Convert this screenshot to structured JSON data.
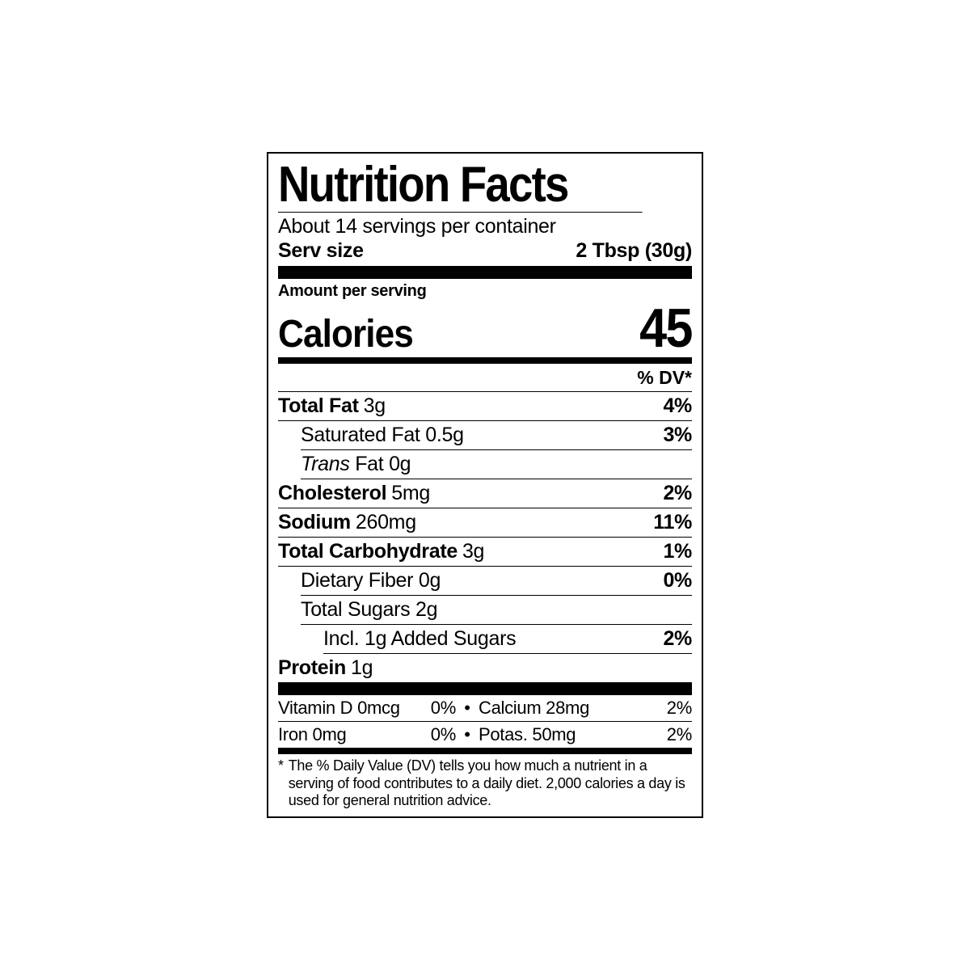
{
  "colors": {
    "text": "#000000",
    "background": "#ffffff",
    "border": "#000000"
  },
  "typography": {
    "title_fontsize": 62,
    "calories_value_fontsize": 68,
    "row_fontsize": 25,
    "vitamin_fontsize": 22,
    "footnote_fontsize": 18
  },
  "title": "Nutrition Facts",
  "servings_per_container": "About 14 servings per container",
  "serving_size_label": "Serv size",
  "serving_size_value": "2 Tbsp (30g)",
  "amount_per_serving": "Amount per serving",
  "calories_label": "Calories",
  "calories_value": "45",
  "dv_header": "% DV*",
  "nutrients": {
    "total_fat": {
      "label": "Total Fat",
      "amount": "3g",
      "dv": "4%"
    },
    "saturated_fat": {
      "label": "Saturated Fat 0.5g",
      "dv": "3%"
    },
    "trans_fat": {
      "prefix": "Trans",
      "suffix": " Fat 0g"
    },
    "cholesterol": {
      "label": "Cholesterol",
      "amount": "5mg",
      "dv": "2%"
    },
    "sodium": {
      "label": "Sodium",
      "amount": "260mg",
      "dv": "11%"
    },
    "total_carb": {
      "label": "Total Carbohydrate",
      "amount": "3g",
      "dv": "1%"
    },
    "dietary_fiber": {
      "label": "Dietary Fiber 0g",
      "dv": "0%"
    },
    "total_sugars": {
      "label": "Total Sugars 2g"
    },
    "added_sugars": {
      "label": "Incl. 1g Added Sugars",
      "dv": "2%"
    },
    "protein": {
      "label": "Protein",
      "amount": "1g"
    }
  },
  "vitamins": {
    "row1": {
      "left_name": "Vitamin D 0mcg",
      "left_pct": "0%",
      "right_name": "Calcium 28mg",
      "right_pct": "2%"
    },
    "row2": {
      "left_name": "Iron 0mg",
      "left_pct": "0%",
      "right_name": "Potas. 50mg",
      "right_pct": "2%"
    }
  },
  "bullet": "•",
  "footnote_star": "*",
  "footnote_text": "The % Daily Value (DV) tells you how much a nutrient in a serving of food contributes to a daily diet. 2,000 calories a day is used for general nutrition advice."
}
